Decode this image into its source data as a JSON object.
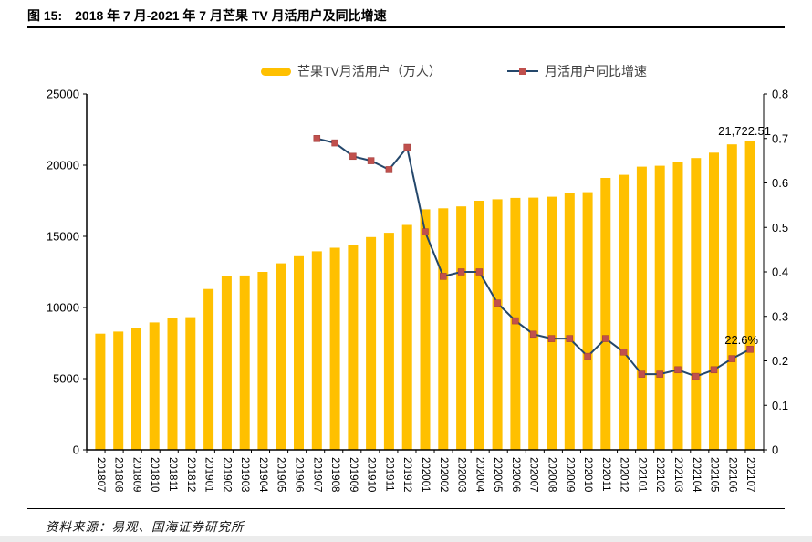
{
  "figure": {
    "id_label": "图 15:",
    "title": "2018 年 7 月-2021 年 7 月芒果 TV 月活用户及同比增速"
  },
  "legend": {
    "bar_label": "芒果TV月活用户（万人）",
    "line_label": "月活用户同比增速"
  },
  "colors": {
    "bar": "#FFC000",
    "line": "#24476B",
    "marker": "#C0504D",
    "axis": "#000000"
  },
  "source": {
    "prefix": "资料来源：",
    "text": "易观、国海证券研究所"
  },
  "chart_data": {
    "type": "bar+line",
    "title": "2018 年 7 月-2021 年 7 月芒果 TV 月活用户及同比增速",
    "grid": false,
    "legend_position": "top",
    "categories": [
      "201807",
      "201808",
      "201809",
      "201810",
      "201811",
      "201812",
      "201901",
      "201902",
      "201903",
      "201904",
      "201905",
      "201906",
      "201907",
      "201908",
      "201909",
      "201910",
      "201911",
      "201912",
      "202001",
      "202002",
      "202003",
      "202004",
      "202005",
      "202006",
      "202007",
      "202008",
      "202009",
      "202010",
      "202011",
      "202012",
      "202101",
      "202102",
      "202103",
      "202104",
      "202105",
      "202106",
      "202107"
    ],
    "series": [
      {
        "name": "芒果TV月活用户（万人）",
        "type": "bar",
        "axis": "left",
        "color": "#FFC000",
        "values": [
          8160,
          8310,
          8530,
          8950,
          9250,
          9320,
          11300,
          12200,
          12250,
          12500,
          13100,
          13600,
          13950,
          14200,
          14400,
          14950,
          15250,
          15800,
          16900,
          16970,
          17100,
          17500,
          17600,
          17700,
          17720,
          17780,
          18030,
          18100,
          19100,
          19320,
          19900,
          19960,
          20240,
          20500,
          20880,
          21460,
          21722.51
        ]
      },
      {
        "name": "月活用户同比增速",
        "type": "line",
        "axis": "right",
        "color": "#24476B",
        "marker_color": "#C0504D",
        "values": [
          null,
          null,
          null,
          null,
          null,
          null,
          null,
          null,
          null,
          null,
          null,
          null,
          0.7,
          0.69,
          0.66,
          0.65,
          0.63,
          0.68,
          0.49,
          0.39,
          0.4,
          0.4,
          0.33,
          0.29,
          0.26,
          0.25,
          0.25,
          0.21,
          0.25,
          0.22,
          0.17,
          0.17,
          0.18,
          0.165,
          0.18,
          0.205,
          0.226
        ]
      }
    ],
    "left_axis": {
      "min": 0,
      "max": 25000,
      "step": 5000,
      "tick_labels": [
        "0",
        "5000",
        "10000",
        "15000",
        "20000",
        "25000"
      ]
    },
    "right_axis": {
      "min": 0,
      "max": 0.8,
      "step": 0.1,
      "tick_labels": [
        "0",
        "0.1",
        "0.2",
        "0.3",
        "0.4",
        "0.5",
        "0.6",
        "0.7",
        "0.8"
      ]
    },
    "annotations": [
      {
        "series": 0,
        "index": 36,
        "text": "21,722.51"
      },
      {
        "series": 1,
        "index": 36,
        "text": "22.6%"
      }
    ]
  }
}
